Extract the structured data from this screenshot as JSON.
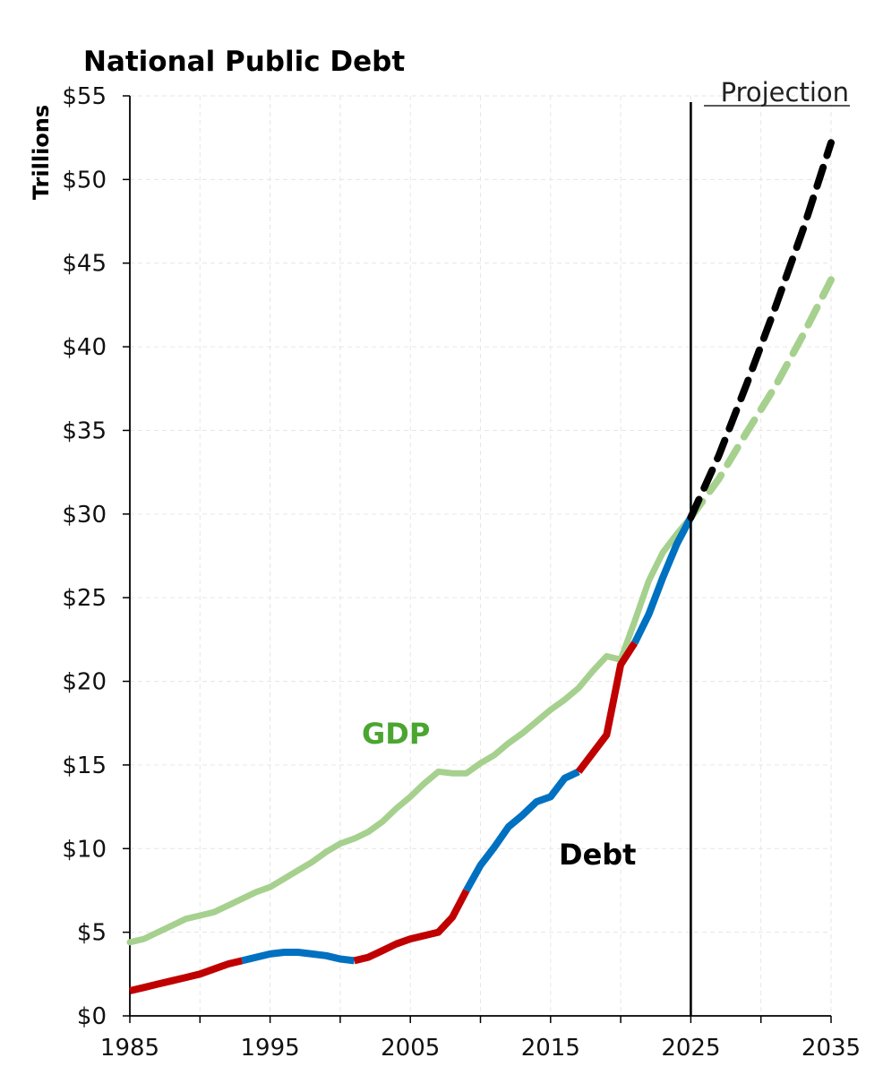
{
  "chart_data": {
    "type": "line",
    "title": "National Public Debt",
    "ylabel": "Trillions",
    "xlabel": "",
    "xlim": [
      1985,
      2035
    ],
    "ylim": [
      0,
      55
    ],
    "x_ticks": [
      "1985",
      "1995",
      "2005",
      "2015",
      "2025",
      "2035"
    ],
    "y_ticks": [
      "$0",
      "$5",
      "$10",
      "$15",
      "$20",
      "$25",
      "$30",
      "$35",
      "$40",
      "$45",
      "$50",
      "$55"
    ],
    "grid": true,
    "projection_label": "Projection",
    "projection_start": 2025,
    "series": [
      {
        "name": "GDP",
        "label_text": "GDP",
        "color": "#a6d08e",
        "label_color": "#4aa630",
        "x": [
          1985,
          1986,
          1987,
          1988,
          1989,
          1990,
          1991,
          1992,
          1993,
          1994,
          1995,
          1996,
          1997,
          1998,
          1999,
          2000,
          2001,
          2002,
          2003,
          2004,
          2005,
          2006,
          2007,
          2008,
          2009,
          2010,
          2011,
          2012,
          2013,
          2014,
          2015,
          2016,
          2017,
          2018,
          2019,
          2020,
          2021,
          2022,
          2023,
          2024,
          2025
        ],
        "values": [
          4.4,
          4.6,
          5.0,
          5.4,
          5.8,
          6.0,
          6.2,
          6.6,
          7.0,
          7.4,
          7.7,
          8.2,
          8.7,
          9.2,
          9.8,
          10.3,
          10.6,
          11.0,
          11.6,
          12.4,
          13.1,
          13.9,
          14.6,
          14.5,
          14.5,
          15.1,
          15.6,
          16.3,
          16.9,
          17.6,
          18.3,
          18.9,
          19.6,
          20.6,
          21.5,
          21.3,
          23.6,
          26.0,
          27.7,
          28.8,
          29.8
        ],
        "projection_x": [
          2025,
          2027,
          2029,
          2031,
          2033,
          2035
        ],
        "projection_values": [
          29.8,
          32.1,
          34.9,
          37.6,
          40.7,
          44.0
        ]
      },
      {
        "name": "Debt",
        "label_text": "Debt",
        "colors": {
          "deficit_increase": "#c00000",
          "deficit_decrease": "#0070c0",
          "projection": "#000000"
        },
        "x": [
          1985,
          1986,
          1987,
          1988,
          1989,
          1990,
          1991,
          1992,
          1993,
          1994,
          1995,
          1996,
          1997,
          1998,
          1999,
          2000,
          2001,
          2002,
          2003,
          2004,
          2005,
          2006,
          2007,
          2008,
          2009,
          2010,
          2011,
          2012,
          2013,
          2014,
          2015,
          2016,
          2017,
          2018,
          2019,
          2020,
          2021,
          2022,
          2023,
          2024,
          2025
        ],
        "values": [
          1.5,
          1.7,
          1.9,
          2.1,
          2.3,
          2.5,
          2.8,
          3.1,
          3.3,
          3.5,
          3.7,
          3.8,
          3.8,
          3.7,
          3.6,
          3.4,
          3.3,
          3.5,
          3.9,
          4.3,
          4.6,
          4.8,
          5.0,
          5.9,
          7.5,
          9.0,
          10.1,
          11.3,
          12.0,
          12.8,
          13.1,
          14.2,
          14.6,
          15.7,
          16.8,
          21.0,
          22.3,
          24.0,
          26.2,
          28.2,
          29.8
        ],
        "segments": [
          {
            "type": "deficit_increase",
            "from": 1985,
            "to": 1993
          },
          {
            "type": "deficit_decrease",
            "from": 1993,
            "to": 2001
          },
          {
            "type": "deficit_increase",
            "from": 2001,
            "to": 2009
          },
          {
            "type": "deficit_decrease",
            "from": 2009,
            "to": 2017
          },
          {
            "type": "deficit_increase",
            "from": 2017,
            "to": 2021
          },
          {
            "type": "deficit_decrease",
            "from": 2021,
            "to": 2025
          }
        ],
        "projection_x": [
          2025,
          2027,
          2029,
          2031,
          2033,
          2035
        ],
        "projection_values": [
          29.8,
          33.5,
          37.8,
          42.3,
          47.0,
          52.2
        ]
      }
    ]
  }
}
